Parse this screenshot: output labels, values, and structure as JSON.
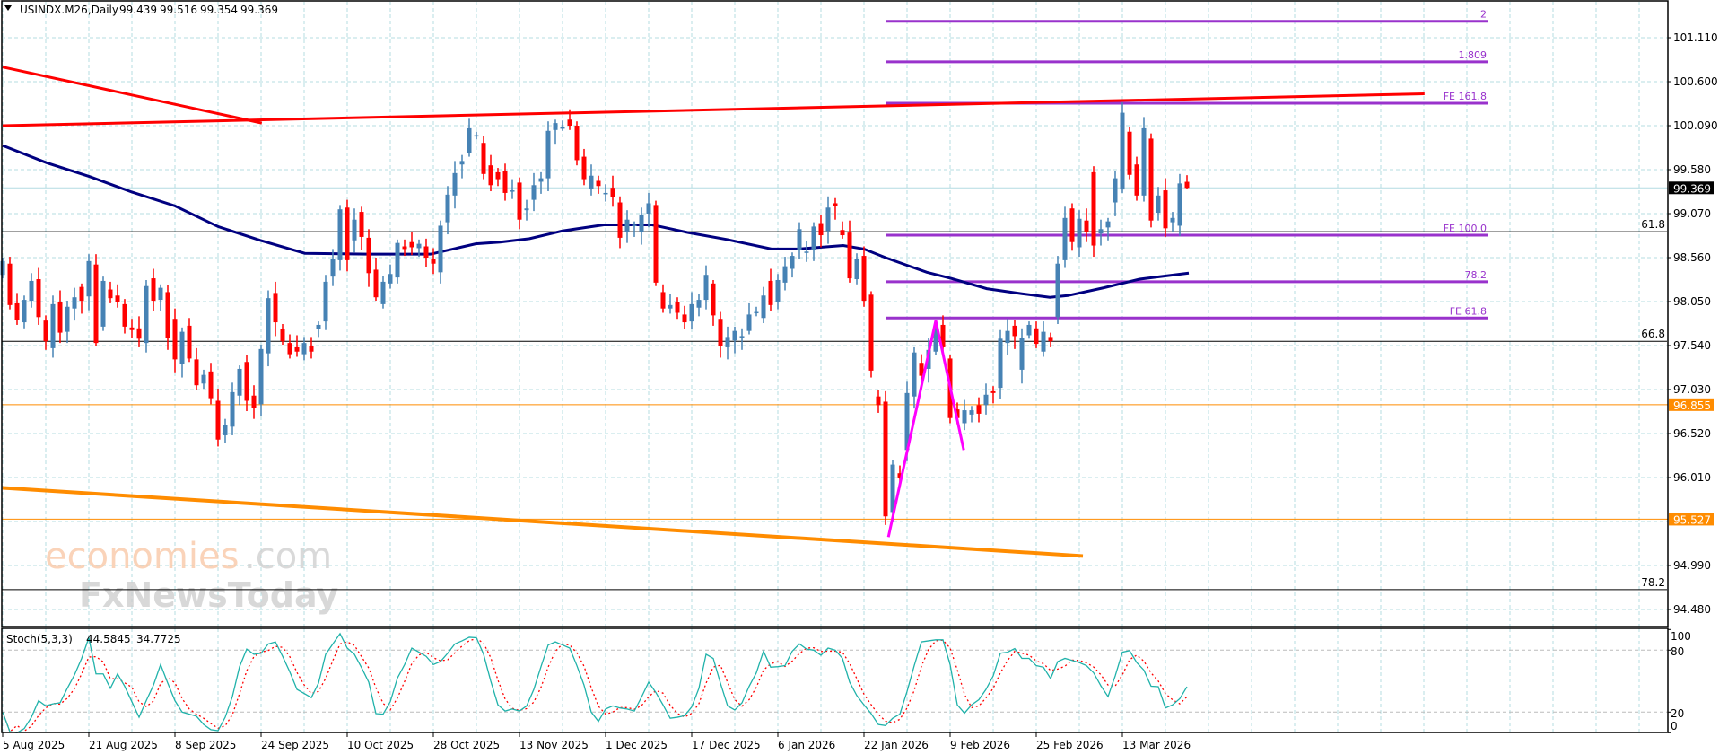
{
  "header": {
    "symbol_timeframe": "USINDX.M26,Daily",
    "open": "99.439",
    "high": "99.516",
    "low": "99.354",
    "close": "99.369"
  },
  "watermark": {
    "brand": "economies",
    "suffix": ".com",
    "sub": "FxNewsToday"
  },
  "colors": {
    "bull": "#4682B4",
    "bear": "#FF0000",
    "ma": "#000080",
    "trend_red": "#FF0000",
    "trend_orange": "#FF8C00",
    "fib": "#9932CC",
    "zigzag": "#FF00FF",
    "grid": "#B4DCE2",
    "stoch_k": "#20B2AA",
    "stoch_d": "#FF0000"
  },
  "chart_data": {
    "type": "candlestick",
    "title": "USINDX.M26,Daily",
    "first_bar": "5 Aug 2025",
    "ylim": [
      94.25,
      101.5
    ],
    "price_ticks": [
      "101.110",
      "100.600",
      "100.090",
      "99.580",
      "99.070",
      "98.560",
      "98.050",
      "97.540",
      "97.030",
      "96.520",
      "96.010",
      "94.990",
      "94.480"
    ],
    "current_price": "99.369",
    "price_tags": [
      {
        "value": "96.855",
        "color": "#FF8C00"
      },
      {
        "value": "95.527",
        "color": "#FF8C00"
      }
    ],
    "date_labels": [
      {
        "bar": 0,
        "label": "5 Aug 2025"
      },
      {
        "bar": 12,
        "label": "21 Aug 2025"
      },
      {
        "bar": 24,
        "label": "8 Sep 2025"
      },
      {
        "bar": 36,
        "label": "24 Sep 2025"
      },
      {
        "bar": 48,
        "label": "10 Oct 2025"
      },
      {
        "bar": 60,
        "label": "28 Oct 2025"
      },
      {
        "bar": 72,
        "label": "13 Nov 2025"
      },
      {
        "bar": 84,
        "label": "1 Dec 2025"
      },
      {
        "bar": 96,
        "label": "17 Dec 2025"
      },
      {
        "bar": 108,
        "label": "6 Jan 2026"
      },
      {
        "bar": 120,
        "label": "22 Jan 2026"
      },
      {
        "bar": 132,
        "label": "9 Feb 2026"
      },
      {
        "bar": 144,
        "label": "25 Feb 2026"
      },
      {
        "bar": 156,
        "label": "13 Mar 2026"
      }
    ],
    "candles_open_close": [
      [
        98.36,
        98.52
      ],
      [
        98.49,
        98.01
      ],
      [
        98.03,
        97.84
      ],
      [
        97.81,
        98.07
      ],
      [
        98.06,
        98.29
      ],
      [
        98.31,
        97.87
      ],
      [
        97.83,
        97.59
      ],
      [
        97.51,
        98.02
      ],
      [
        98.04,
        97.69
      ],
      [
        97.7,
        97.99
      ],
      [
        97.97,
        98.1
      ],
      [
        98.22,
        98.06
      ],
      [
        98.11,
        98.52
      ],
      [
        98.48,
        97.57
      ],
      [
        97.76,
        98.29
      ],
      [
        98.19,
        98.09
      ],
      [
        98.12,
        98.05
      ],
      [
        98.02,
        97.76
      ],
      [
        97.75,
        97.72
      ],
      [
        97.74,
        97.62
      ],
      [
        97.57,
        98.23
      ],
      [
        98.32,
        98.06
      ],
      [
        98.07,
        98.21
      ],
      [
        98.16,
        97.63
      ],
      [
        97.85,
        97.38
      ],
      [
        97.33,
        97.7
      ],
      [
        97.77,
        97.39
      ],
      [
        97.38,
        97.08
      ],
      [
        97.1,
        97.2
      ],
      [
        97.24,
        96.93
      ],
      [
        96.9,
        96.45
      ],
      [
        96.5,
        96.62
      ],
      [
        96.6,
        97.0
      ],
      [
        96.96,
        97.27
      ],
      [
        97.35,
        96.9
      ],
      [
        96.96,
        96.82
      ],
      [
        96.86,
        97.5
      ],
      [
        97.45,
        98.09
      ],
      [
        98.15,
        97.81
      ],
      [
        97.73,
        97.59
      ],
      [
        97.57,
        97.44
      ],
      [
        97.52,
        97.47
      ],
      [
        97.44,
        97.57
      ],
      [
        97.53,
        97.47
      ],
      [
        97.73,
        97.78
      ],
      [
        97.82,
        98.28
      ],
      [
        98.34,
        98.54
      ],
      [
        98.53,
        99.12
      ],
      [
        99.14,
        98.53
      ],
      [
        98.76,
        99.0
      ],
      [
        99.09,
        98.8
      ],
      [
        98.79,
        98.38
      ],
      [
        98.42,
        98.1
      ],
      [
        98.02,
        98.28
      ],
      [
        98.26,
        98.37
      ],
      [
        98.33,
        98.73
      ],
      [
        98.69,
        98.66
      ],
      [
        98.74,
        98.68
      ],
      [
        98.67,
        98.72
      ],
      [
        98.69,
        98.56
      ],
      [
        98.54,
        98.49
      ],
      [
        98.39,
        98.93
      ],
      [
        98.97,
        99.29
      ],
      [
        99.28,
        99.54
      ],
      [
        99.64,
        99.68
      ],
      [
        99.77,
        100.06
      ],
      [
        99.98,
        99.98
      ],
      [
        99.89,
        99.53
      ],
      [
        99.63,
        99.4
      ],
      [
        99.55,
        99.47
      ],
      [
        99.56,
        99.31
      ],
      [
        99.34,
        99.34
      ],
      [
        99.43,
        99.0
      ],
      [
        99.11,
        99.13
      ],
      [
        99.23,
        99.4
      ],
      [
        99.44,
        99.48
      ],
      [
        99.48,
        100.03
      ],
      [
        100.04,
        100.12
      ],
      [
        100.07,
        100.07
      ],
      [
        100.16,
        100.09
      ],
      [
        100.09,
        99.69
      ],
      [
        99.73,
        99.47
      ],
      [
        99.36,
        99.51
      ],
      [
        99.45,
        99.39
      ],
      [
        99.31,
        99.31
      ],
      [
        99.37,
        99.26
      ],
      [
        99.2,
        98.79
      ],
      [
        98.86,
        99.0
      ],
      [
        98.94,
        98.94
      ],
      [
        98.86,
        99.06
      ],
      [
        99.07,
        99.19
      ],
      [
        99.17,
        98.27
      ],
      [
        98.16,
        97.97
      ],
      [
        97.97,
        98.01
      ],
      [
        98.04,
        97.92
      ],
      [
        97.9,
        97.81
      ],
      [
        97.82,
        98.02
      ],
      [
        97.98,
        98.07
      ],
      [
        98.07,
        98.36
      ],
      [
        98.26,
        97.89
      ],
      [
        97.85,
        97.53
      ],
      [
        97.52,
        97.64
      ],
      [
        97.6,
        97.71
      ],
      [
        97.65,
        97.65
      ],
      [
        97.71,
        97.9
      ],
      [
        97.93,
        97.93
      ],
      [
        97.86,
        98.12
      ],
      [
        98.29,
        98.01
      ],
      [
        98.04,
        98.3
      ],
      [
        98.27,
        98.46
      ],
      [
        98.43,
        98.58
      ],
      [
        98.65,
        98.89
      ],
      [
        98.63,
        98.63
      ],
      [
        98.65,
        98.92
      ],
      [
        98.96,
        98.82
      ],
      [
        98.87,
        99.14
      ],
      [
        99.19,
        99.16
      ],
      [
        98.88,
        98.82
      ],
      [
        98.85,
        98.32
      ],
      [
        98.31,
        98.54
      ],
      [
        98.58,
        98.06
      ],
      [
        98.13,
        97.25
      ],
      [
        96.95,
        96.85
      ],
      [
        96.89,
        95.56
      ],
      [
        95.61,
        96.16
      ],
      [
        96.06,
        96.01
      ],
      [
        96.33,
        96.99
      ],
      [
        96.95,
        97.46
      ],
      [
        97.34,
        97.19
      ],
      [
        97.27,
        97.49
      ],
      [
        97.47,
        97.73
      ],
      [
        97.78,
        97.52
      ],
      [
        97.39,
        96.7
      ],
      [
        96.8,
        96.7
      ],
      [
        96.64,
        96.79
      ],
      [
        96.74,
        96.79
      ],
      [
        96.85,
        96.75
      ],
      [
        96.85,
        96.97
      ],
      [
        97.01,
        96.99
      ],
      [
        97.05,
        97.62
      ],
      [
        97.57,
        97.71
      ],
      [
        97.77,
        97.65
      ],
      [
        97.26,
        97.63
      ],
      [
        97.66,
        97.78
      ],
      [
        97.74,
        97.56
      ],
      [
        97.47,
        97.7
      ],
      [
        97.64,
        97.59
      ],
      [
        97.87,
        98.49
      ],
      [
        98.53,
        99.02
      ],
      [
        99.13,
        98.74
      ],
      [
        98.68,
        99.01
      ],
      [
        98.99,
        98.86
      ],
      [
        99.55,
        98.7
      ],
      [
        98.84,
        98.89
      ],
      [
        98.91,
        98.98
      ],
      [
        99.2,
        99.48
      ],
      [
        99.35,
        100.24
      ],
      [
        100.02,
        99.52
      ],
      [
        99.64,
        99.28
      ],
      [
        99.28,
        100.06
      ],
      [
        99.94,
        98.99
      ],
      [
        99.08,
        99.28
      ],
      [
        99.34,
        98.9
      ],
      [
        98.97,
        99.02
      ],
      [
        98.93,
        99.42
      ],
      [
        99.439,
        99.369
      ]
    ],
    "moving_average": [
      [
        0,
        99.86
      ],
      [
        6.1,
        99.66
      ],
      [
        12.1,
        99.5
      ],
      [
        18,
        99.32
      ],
      [
        24,
        99.16
      ],
      [
        30,
        98.92
      ],
      [
        35.9,
        98.76
      ],
      [
        42.1,
        98.61
      ],
      [
        50.9,
        98.6
      ],
      [
        59.6,
        98.6
      ],
      [
        65.9,
        98.72
      ],
      [
        69.3,
        98.74
      ],
      [
        73.4,
        98.78
      ],
      [
        78,
        98.87
      ],
      [
        83.75,
        98.94
      ],
      [
        90.5,
        98.94
      ],
      [
        95.5,
        98.85
      ],
      [
        100.9,
        98.77
      ],
      [
        107.1,
        98.66
      ],
      [
        110.9,
        98.66
      ],
      [
        117.1,
        98.7
      ],
      [
        120,
        98.66
      ],
      [
        123,
        98.56
      ],
      [
        128.75,
        98.39
      ],
      [
        132.1,
        98.32
      ],
      [
        137.1,
        98.2
      ],
      [
        142.1,
        98.14
      ],
      [
        145.9,
        98.1
      ],
      [
        148.4,
        98.12
      ],
      [
        153.4,
        98.21
      ],
      [
        155.9,
        98.26
      ],
      [
        158.4,
        98.31
      ],
      [
        165.25,
        98.38
      ]
    ],
    "trendlines": [
      {
        "name": "red-resistance-descending",
        "color": "#FF0000",
        "points": [
          [
            0,
            100.77
          ],
          [
            36.1,
            100.12
          ]
        ]
      },
      {
        "name": "red-resistance-rising",
        "color": "#FF0000",
        "points": [
          [
            0,
            100.09
          ],
          [
            198.1,
            100.46
          ]
        ]
      },
      {
        "name": "orange-support",
        "color": "#FF8C00",
        "points": [
          [
            0,
            95.89
          ],
          [
            150.5,
            95.1
          ]
        ]
      },
      {
        "name": "zigzag",
        "color": "#FF00FF",
        "points": [
          [
            123.4,
            95.32
          ],
          [
            130,
            97.83
          ],
          [
            133.9,
            96.33
          ]
        ]
      }
    ],
    "fib_expansion": {
      "start_bar": 123,
      "end_bar": 207,
      "levels": [
        {
          "label": "2",
          "price": 101.3
        },
        {
          "label": "1.809",
          "price": 100.83
        },
        {
          "label": "FE 161.8",
          "price": 100.35
        },
        {
          "label": "FE 100.0",
          "price": 98.82
        },
        {
          "label": "78.2",
          "price": 98.28
        },
        {
          "label": "FE 61.8",
          "price": 97.86
        }
      ]
    },
    "horizontal_levels": [
      {
        "label": "61.8",
        "price": 98.86
      },
      {
        "label": "66.8",
        "price": 97.59
      },
      {
        "label": "78.2",
        "price": 94.71
      }
    ],
    "orange_levels": [
      96.855,
      95.527
    ],
    "stochastic": {
      "label": "Stoch(5,3,3)",
      "k_value": "44.5845",
      "d_value": "34.7725",
      "levels": [
        "100",
        "80",
        "20",
        "0"
      ],
      "k": [
        20,
        1,
        0,
        4,
        15,
        31,
        26,
        28,
        29,
        43,
        56,
        72,
        92,
        57,
        57,
        43,
        57,
        45,
        30,
        15,
        31,
        46,
        66,
        48,
        31,
        20,
        18,
        16,
        8,
        3,
        2,
        15,
        35,
        64,
        81,
        76,
        77,
        86,
        88,
        74,
        59,
        42,
        38,
        34,
        48,
        76,
        86,
        96,
        82,
        76,
        63,
        49,
        18.5,
        18,
        30,
        53,
        66,
        82,
        78,
        74,
        66,
        69,
        77,
        86,
        89,
        92.5,
        92,
        76,
        50,
        27,
        21,
        23,
        21,
        26,
        42,
        64,
        85,
        88,
        85,
        82,
        65,
        46,
        20,
        11,
        23,
        26,
        24,
        23,
        21,
        34.5,
        49,
        39,
        27,
        14,
        15,
        16.5,
        25,
        43,
        76,
        72,
        48,
        26,
        22,
        29,
        45,
        58,
        79,
        63.5,
        64,
        65,
        79,
        86,
        81,
        80,
        75,
        82,
        80,
        72,
        49,
        36,
        27,
        18.5,
        8,
        7,
        14,
        18,
        40,
        65,
        88,
        89,
        90,
        90,
        66,
        27,
        19,
        27,
        32,
        42,
        55,
        77,
        78,
        81.5,
        72,
        72,
        65,
        63.5,
        52.5,
        69,
        72,
        70,
        68,
        65,
        58,
        45.5,
        35,
        55,
        78,
        79.5,
        68,
        60.6,
        45,
        44.6,
        24,
        27,
        33,
        44.58
      ]
    }
  }
}
